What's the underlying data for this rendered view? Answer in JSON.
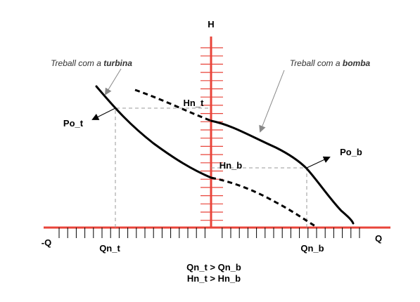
{
  "axes": {
    "vertical_label": "H",
    "horizontal_pos_label": "Q",
    "horizontal_neg_label": "-Q",
    "color": "#e8443a"
  },
  "labels": {
    "hn_t": "Hn_t",
    "hn_b": "Hn_b",
    "qn_t": "Qn_t",
    "qn_b": "Qn_b",
    "po_t": "Po_t",
    "po_b": "Po_b"
  },
  "annotations": {
    "turbina_prefix": "Treball com a ",
    "turbina_bold": "turbina",
    "bomba_prefix": "Treball com a ",
    "bomba_bold": "bomba"
  },
  "relations": {
    "line1": "Qn_t > Qn_b",
    "line2": "Hn_t > Hn_b"
  }
}
